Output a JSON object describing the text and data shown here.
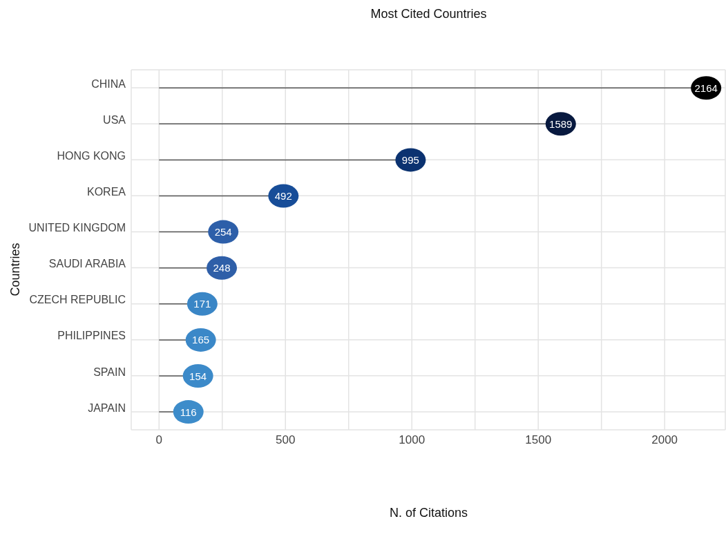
{
  "chart_data": {
    "type": "lollipop",
    "orientation": "horizontal",
    "title": "Most Cited Countries",
    "xlabel": "N. of Citations",
    "ylabel": "Countries",
    "categories": [
      "CHINA",
      "USA",
      "HONG KONG",
      "KOREA",
      "UNITED KINGDOM",
      "SAUDI ARABIA",
      "CZECH REPUBLIC",
      "PHILIPPINES",
      "SPAIN",
      "JAPAIN"
    ],
    "values": [
      2164,
      1589,
      995,
      492,
      254,
      248,
      171,
      165,
      154,
      116
    ],
    "colors": [
      "#000000",
      "#08193f",
      "#0b3270",
      "#174d98",
      "#2d5fa9",
      "#2f5fa8",
      "#3a86c6",
      "#3b88c8",
      "#3c8ac9",
      "#3d8cca"
    ],
    "xlim": [
      -110,
      2240
    ],
    "xticks": [
      0,
      {
        "value": 250,
        "label": null
      },
      500,
      {
        "value": 750,
        "label": null
      },
      1000,
      {
        "value": 1250,
        "label": null
      },
      1500,
      {
        "value": 1750,
        "label": null
      },
      2000
    ],
    "grid": true,
    "data_labels": true
  }
}
